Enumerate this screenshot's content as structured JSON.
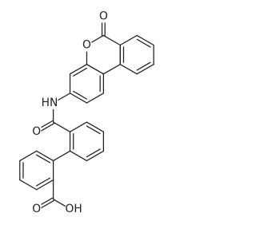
{
  "atoms": {
    "lactone_carbonyl_oxygen": "O",
    "ring_oxygen": "O",
    "amide_nitrogen": "HN",
    "amide_oxygen": "O",
    "acid_hydroxyl": "OH",
    "acid_carbonyl_oxygen": "O"
  }
}
